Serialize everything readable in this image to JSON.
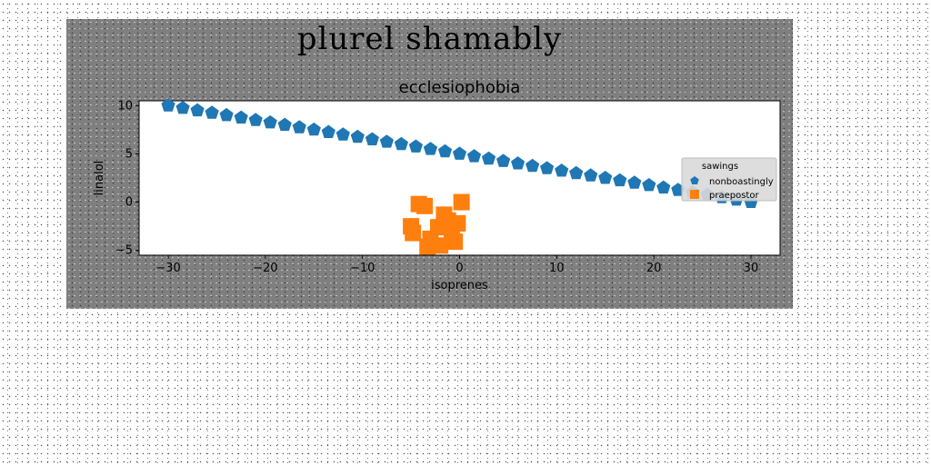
{
  "figure": {
    "suptitle": "plurel shamably"
  },
  "chart_data": {
    "type": "scatter",
    "title": "ecclesiophobia",
    "xlabel": "isoprenes",
    "ylabel": "linalol",
    "xlim": [
      -33,
      33
    ],
    "ylim": [
      -5.5,
      10.5
    ],
    "xticks": [
      -30,
      -20,
      -10,
      0,
      10,
      20,
      30
    ],
    "xtick_labels": [
      "−30",
      "−20",
      "−10",
      "0",
      "10",
      "20",
      "30"
    ],
    "yticks": [
      -5,
      0,
      5,
      10
    ],
    "ytick_labels": [
      "−5",
      "0",
      "5",
      "10"
    ],
    "grid": false,
    "legend": {
      "title": "sawings",
      "placement": "right"
    },
    "series": [
      {
        "name": "nonboastingly",
        "marker": "pentagon",
        "color": "#1f77b4",
        "x": [
          -30,
          -28.5,
          -27,
          -25.5,
          -24,
          -22.5,
          -21,
          -19.5,
          -18,
          -16.5,
          -15,
          -13.5,
          -12,
          -10.5,
          -9,
          -7.5,
          -6,
          -4.5,
          -3,
          -1.5,
          0,
          1.5,
          3,
          4.5,
          6,
          7.5,
          9,
          10.5,
          12,
          13.5,
          15,
          16.5,
          18,
          19.5,
          21,
          22.5,
          24,
          25.5,
          27,
          28.5,
          30
        ],
        "y": [
          10.0,
          9.75,
          9.5,
          9.25,
          9.0,
          8.75,
          8.5,
          8.25,
          8.0,
          7.75,
          7.5,
          7.25,
          7.0,
          6.75,
          6.5,
          6.25,
          6.0,
          5.75,
          5.5,
          5.25,
          5.0,
          4.75,
          4.5,
          4.25,
          4.0,
          3.75,
          3.5,
          3.25,
          3.0,
          2.75,
          2.5,
          2.25,
          2.0,
          1.75,
          1.5,
          1.25,
          1.0,
          0.75,
          0.5,
          0.25,
          0.0
        ]
      },
      {
        "name": "praepostor",
        "marker": "square",
        "color": "#ff7f0e",
        "x": [
          -4.2,
          -3.6,
          -4.8,
          -2.2,
          -1.2,
          -0.5,
          0.2,
          -3.0,
          -2.0,
          -0.8,
          -5.0,
          -1.6,
          -3.3,
          -0.2
        ],
        "y": [
          -0.2,
          -0.4,
          -3.2,
          -2.6,
          -1.9,
          -4.1,
          0.0,
          -3.8,
          -4.5,
          -3.0,
          -2.5,
          -1.3,
          -4.6,
          -2.2
        ]
      }
    ]
  }
}
